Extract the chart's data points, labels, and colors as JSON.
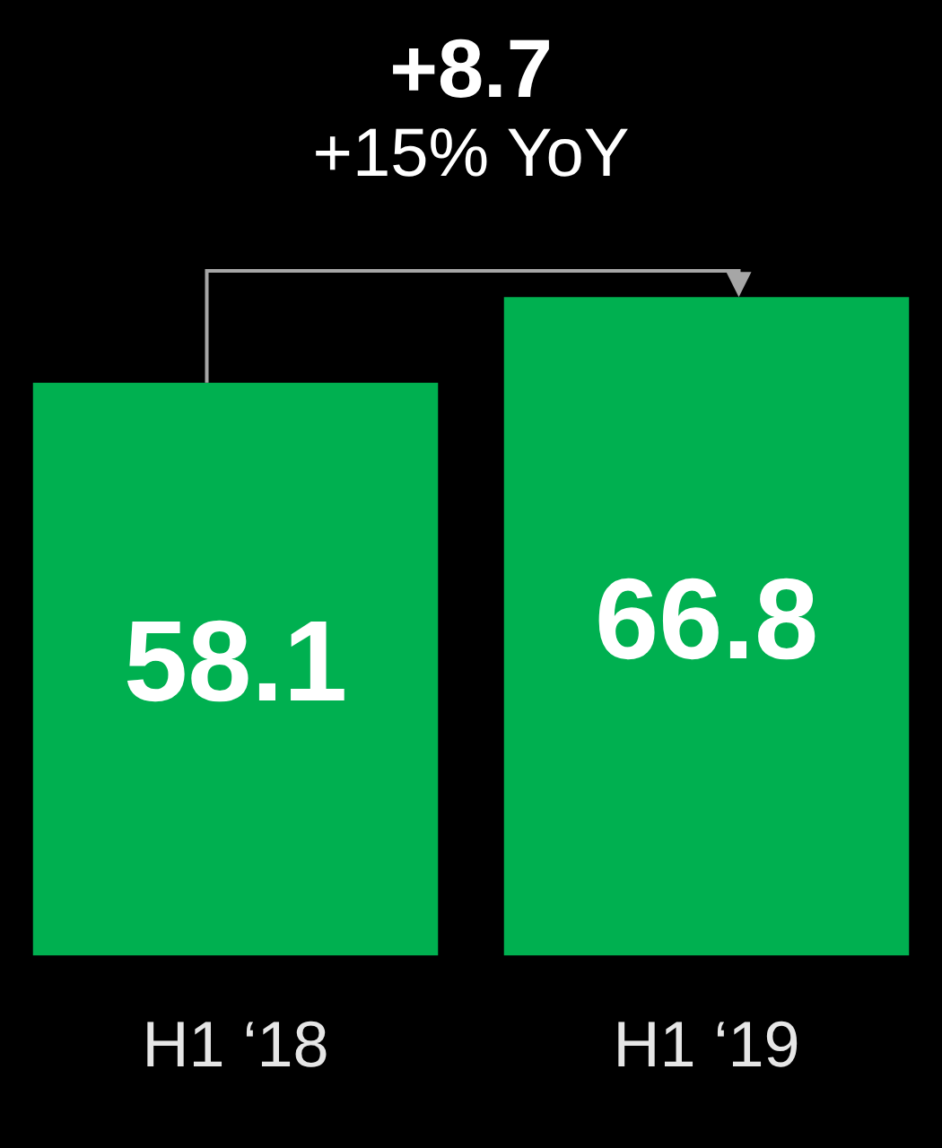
{
  "chart_data": {
    "type": "bar",
    "categories": [
      "H1 ‘18",
      "H1 ‘19"
    ],
    "values": [
      58.1,
      66.8
    ],
    "color": "#00b050",
    "data_labels": true,
    "annotations": [
      "+8.7",
      "+15% YoY"
    ]
  }
}
